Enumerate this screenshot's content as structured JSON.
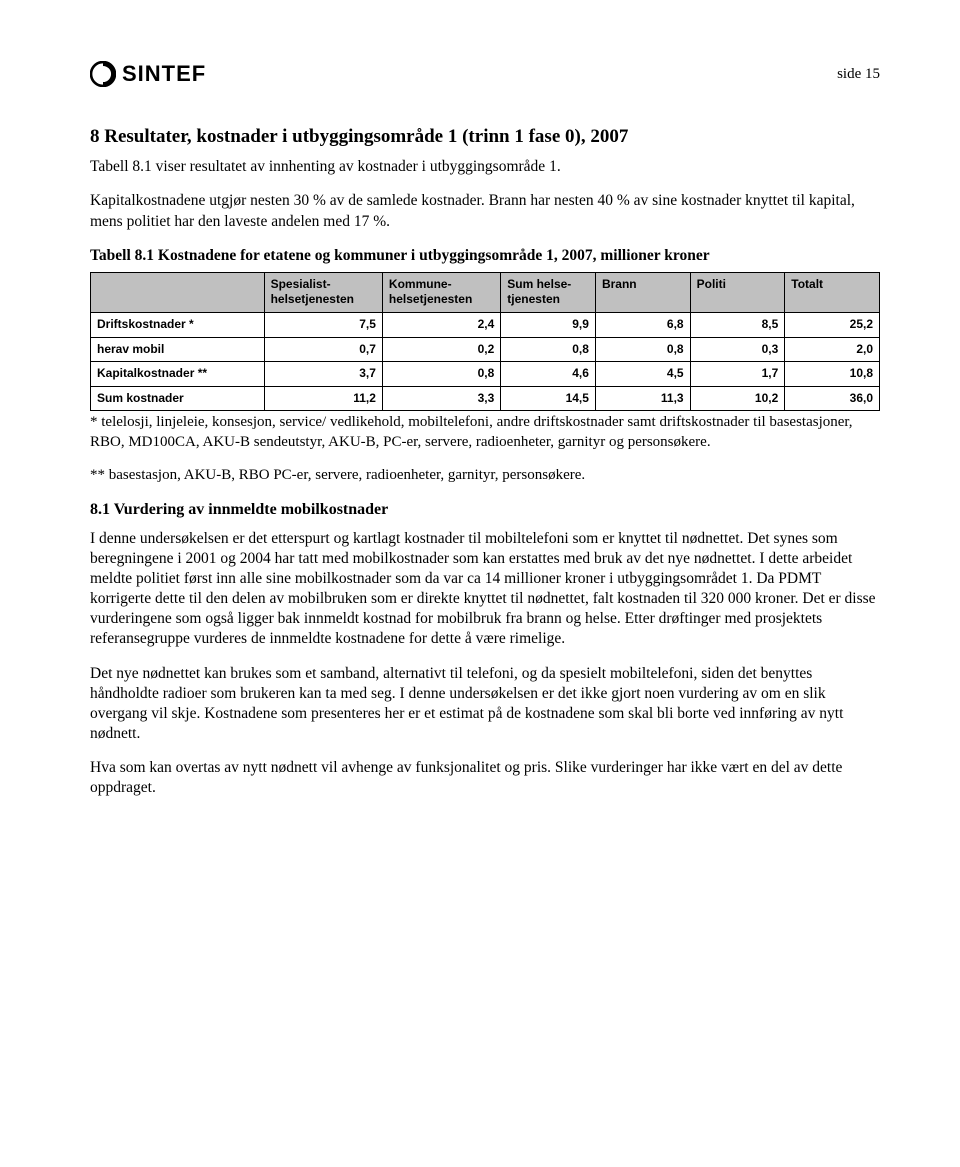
{
  "header": {
    "logo_text": "SINTEF",
    "page_label": "side 15"
  },
  "section": {
    "title": "8  Resultater, kostnader i utbyggingsområde 1 (trinn 1 fase 0), 2007",
    "para1": "Tabell 8.1 viser resultatet av innhenting av kostnader i utbyggingsområde 1.",
    "para2": "Kapitalkostnadene utgjør nesten 30 % av de samlede kostnader. Brann har nesten 40 % av sine kostnader knyttet til kapital, mens politiet har den laveste andelen med 17 %."
  },
  "table": {
    "caption": "Tabell 8.1 Kostnadene for etatene og kommuner i utbyggingsområde 1, 2007, millioner kroner",
    "header_bg": "#c0c0c0",
    "border_color": "#000000",
    "font_family": "Arial",
    "font_size_pt": 9,
    "columns": [
      "",
      "Spesialist-helsetjenesten",
      "Kommune-helsetjenesten",
      "Sum helse-tjenesten",
      "Brann",
      "Politi",
      "Totalt"
    ],
    "col_widths_pct": [
      22,
      15,
      15,
      12,
      12,
      12,
      12
    ],
    "rows": [
      {
        "label": "Driftskostnader *",
        "bold": true,
        "values": [
          "7,5",
          "2,4",
          "9,9",
          "6,8",
          "8,5",
          "25,2"
        ]
      },
      {
        "label": "herav mobil",
        "bold": true,
        "values": [
          "0,7",
          "0,2",
          "0,8",
          "0,8",
          "0,3",
          "2,0"
        ]
      },
      {
        "label": "Kapitalkostnader **",
        "bold": true,
        "values": [
          "3,7",
          "0,8",
          "4,6",
          "4,5",
          "1,7",
          "10,8"
        ]
      },
      {
        "label": "Sum kostnader",
        "bold": true,
        "values": [
          "11,2",
          "3,3",
          "14,5",
          "11,3",
          "10,2",
          "36,0"
        ]
      }
    ],
    "footnote1": "* telelosji, linjeleie, konsesjon, service/ vedlikehold, mobiltelefoni, andre driftskostnader samt driftskostnader til basestasjoner, RBO, MD100CA, AKU-B sendeutstyr, AKU-B, PC-er, servere, radioenheter, garnityr og personsøkere.",
    "footnote2": "** basestasjon, AKU-B, RBO PC-er, servere, radioenheter, garnityr, personsøkere."
  },
  "sub": {
    "heading": "8.1 Vurdering av innmeldte mobilkostnader",
    "para1": "I denne undersøkelsen er det etterspurt og kartlagt kostnader til mobiltelefoni som er knyttet til nødnettet. Det synes som beregningene i 2001 og 2004 har tatt med mobilkostnader som kan erstattes med bruk av det nye nødnettet. I dette arbeidet meldte politiet først inn alle sine mobilkostnader som da var ca 14 millioner kroner i utbyggingsområdet 1. Da PDMT korrigerte dette til den delen av mobilbruken som er direkte knyttet til nødnettet, falt kostnaden til 320 000 kroner. Det er disse vurderingene som også ligger bak innmeldt kostnad for mobilbruk fra brann og helse. Etter drøftinger med prosjektets referansegruppe vurderes de innmeldte kostnadene for dette å være rimelige.",
    "para2": "Det nye nødnettet kan brukes som et samband, alternativt til telefoni, og da spesielt mobiltelefoni, siden det benyttes håndholdte radioer som brukeren kan ta med seg. I denne undersøkelsen er det ikke gjort noen vurdering av om en slik overgang vil skje. Kostnadene som presenteres her er et estimat på de kostnadene som skal bli borte ved innføring av nytt nødnett.",
    "para3": "Hva som kan overtas av nytt nødnett vil avhenge av funksjonalitet og pris. Slike vurderinger har ikke vært en del av dette oppdraget."
  }
}
